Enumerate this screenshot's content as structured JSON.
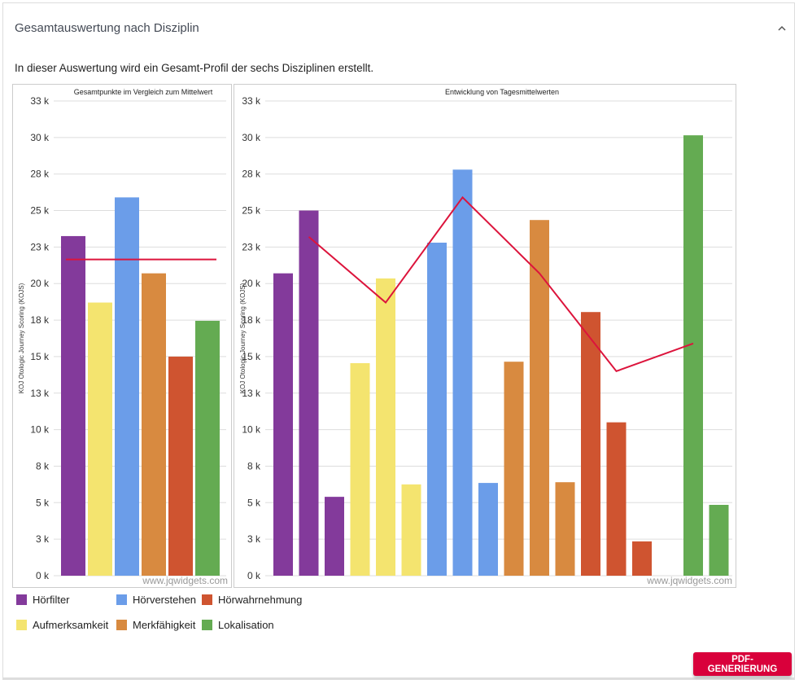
{
  "panel": {
    "title": "Gesamtauswertung nach Disziplin",
    "collapse_icon": "chevron-up-icon",
    "description": "In dieser Auswertung wird ein Gesamt-Profil der sechs Disziplinen erstellt.",
    "pdf_button": "PDF-GENERIERUNG",
    "watermark": "www.jqwidgets.com"
  },
  "legend": [
    {
      "label": "Hörfilter",
      "color": "#833a9b"
    },
    {
      "label": "Hörverstehen",
      "color": "#6b9de9"
    },
    {
      "label": "Hörwahrnehmung",
      "color": "#cf5430"
    },
    {
      "label": "Aufmerksamkeit",
      "color": "#f4e46f"
    },
    {
      "label": "Merkfähigkeit",
      "color": "#d88a40"
    },
    {
      "label": "Lokalisation",
      "color": "#64ab52"
    }
  ],
  "chart_data": [
    {
      "type": "bar",
      "title": "Gesamtpunkte im Vergleich zum Mittelwert",
      "ylabel": "KOJ Otologic Journey Scoring (KOJS)",
      "ylim": [
        0,
        32500
      ],
      "yticks": [
        0,
        2500,
        5000,
        7500,
        10000,
        12500,
        15000,
        17500,
        20000,
        22500,
        25000,
        27500,
        30000,
        32500
      ],
      "ytick_labels": [
        "0 k",
        "3 k",
        "5 k",
        "8 k",
        "10 k",
        "13 k",
        "15 k",
        "18 k",
        "20 k",
        "23 k",
        "25 k",
        "28 k",
        "30 k",
        "33 k"
      ],
      "grid": true,
      "categories": [
        "Hörfilter",
        "Aufmerksamkeit",
        "Hörverstehen",
        "Merkfähigkeit",
        "Hörwahrnehmung",
        "Lokalisation"
      ],
      "values": [
        23250,
        18700,
        25900,
        20700,
        15000,
        17450
      ],
      "mean_line": 21650,
      "line_color": "#dc143c"
    },
    {
      "type": "bar",
      "title": "Entwicklung von Tagesmittelwerten",
      "ylabel": "KOJ Otologic Journey Scoring (KOJS)",
      "ylim": [
        0,
        32500
      ],
      "yticks": [
        0,
        2500,
        5000,
        7500,
        10000,
        12500,
        15000,
        17500,
        20000,
        22500,
        25000,
        27500,
        30000,
        32500
      ],
      "ytick_labels": [
        "0 k",
        "3 k",
        "5 k",
        "8 k",
        "10 k",
        "13 k",
        "15 k",
        "18 k",
        "20 k",
        "23 k",
        "25 k",
        "28 k",
        "30 k",
        "33 k"
      ],
      "grid": true,
      "series": [
        {
          "name": "Hörfilter",
          "values": [
            20700,
            25000,
            5400
          ]
        },
        {
          "name": "Aufmerksamkeit",
          "values": [
            14550,
            20350,
            6250
          ]
        },
        {
          "name": "Hörverstehen",
          "values": [
            22800,
            27800,
            6350
          ]
        },
        {
          "name": "Merkfähigkeit",
          "values": [
            14650,
            24350,
            6400
          ]
        },
        {
          "name": "Hörwahrnehmung",
          "values": [
            18050,
            10500,
            2350
          ]
        },
        {
          "name": "Lokalisation",
          "values": [
            0,
            30150,
            4850
          ]
        }
      ],
      "line_values": [
        23200,
        18700,
        25900,
        20700,
        14000,
        15900
      ],
      "line_color": "#dc143c"
    }
  ]
}
